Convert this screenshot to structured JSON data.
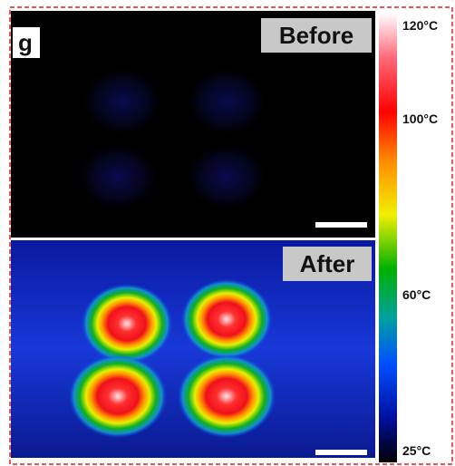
{
  "panel_label": "g",
  "images": [
    {
      "label": "Before"
    },
    {
      "label": "After"
    }
  ],
  "colorbar": {
    "ticks": [
      "120°C",
      "100°C",
      "60°C",
      "25°C"
    ]
  }
}
